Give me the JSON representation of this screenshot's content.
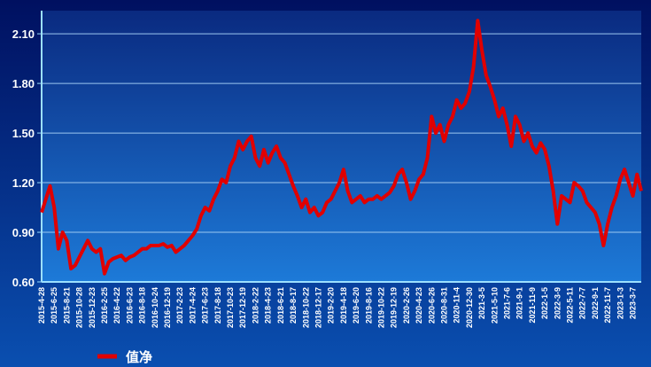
{
  "chart_data": {
    "type": "line",
    "categories": [
      "2015-4-28",
      null,
      null,
      "2015-6-25",
      null,
      null,
      "2015-8-21",
      null,
      null,
      "2015-10-28",
      null,
      null,
      "2015-12-23",
      null,
      null,
      "2016-2-25",
      null,
      null,
      "2016-4-22",
      null,
      null,
      "2016-6-23",
      null,
      null,
      "2016-8-18",
      null,
      null,
      "2016-10-24",
      null,
      null,
      "2016-12-19",
      null,
      null,
      "2017-2-23",
      null,
      null,
      "2017-4-24",
      null,
      null,
      "2017-6-23",
      null,
      null,
      "2017-8-18",
      null,
      null,
      "2017-10-23",
      null,
      null,
      "2017-12-19",
      null,
      null,
      "2018-2-22",
      null,
      null,
      "2018-4-23",
      null,
      null,
      "2018-6-21",
      null,
      null,
      "2018-8-17",
      null,
      null,
      "2018-10-22",
      null,
      null,
      "2018-12-17",
      null,
      null,
      "2019-2-20",
      null,
      null,
      "2019-4-18",
      null,
      null,
      "2019-6-20",
      null,
      null,
      "2019-8-16",
      null,
      null,
      "2019-10-22",
      null,
      null,
      "2019-12-19",
      null,
      null,
      "2020-2-26",
      null,
      null,
      "2020-4-23",
      null,
      null,
      "2020-6-26",
      null,
      null,
      "2020-8-31",
      null,
      null,
      "2020-11-4",
      null,
      null,
      "2020-12-30",
      null,
      null,
      "2021-3-5",
      null,
      null,
      "2021-5-10",
      null,
      null,
      "2021-7-6",
      null,
      null,
      "2021-9-1",
      null,
      null,
      "2021-11-9",
      null,
      null,
      "2022-1-5",
      null,
      null,
      "2022-3-9",
      null,
      null,
      "2022-5-11",
      null,
      null,
      "2022-7-7",
      null,
      null,
      "2022-9-1",
      null,
      null,
      "2022-11-7",
      null,
      null,
      "2023-1-3",
      null,
      null,
      "2023-3-7",
      null,
      null
    ],
    "series": [
      {
        "name": "值净",
        "color": "#e00000",
        "values": [
          1.02,
          1.1,
          1.18,
          1.05,
          0.8,
          0.9,
          0.85,
          0.68,
          0.7,
          0.75,
          0.8,
          0.85,
          0.8,
          0.78,
          0.8,
          0.65,
          0.72,
          0.74,
          0.75,
          0.76,
          0.73,
          0.75,
          0.76,
          0.78,
          0.8,
          0.8,
          0.82,
          0.82,
          0.82,
          0.83,
          0.81,
          0.82,
          0.78,
          0.8,
          0.82,
          0.85,
          0.88,
          0.92,
          1.0,
          1.05,
          1.03,
          1.1,
          1.15,
          1.22,
          1.2,
          1.3,
          1.35,
          1.45,
          1.4,
          1.45,
          1.48,
          1.35,
          1.3,
          1.4,
          1.32,
          1.38,
          1.42,
          1.35,
          1.32,
          1.25,
          1.18,
          1.12,
          1.05,
          1.1,
          1.02,
          1.05,
          1.0,
          1.02,
          1.08,
          1.1,
          1.15,
          1.2,
          1.28,
          1.15,
          1.08,
          1.1,
          1.12,
          1.08,
          1.1,
          1.1,
          1.12,
          1.1,
          1.12,
          1.14,
          1.18,
          1.25,
          1.28,
          1.2,
          1.1,
          1.15,
          1.22,
          1.25,
          1.35,
          1.6,
          1.5,
          1.55,
          1.45,
          1.55,
          1.6,
          1.7,
          1.65,
          1.68,
          1.75,
          1.9,
          2.18,
          2.0,
          1.85,
          1.78,
          1.7,
          1.6,
          1.65,
          1.55,
          1.42,
          1.6,
          1.55,
          1.45,
          1.5,
          1.42,
          1.38,
          1.44,
          1.4,
          1.3,
          1.15,
          0.95,
          1.12,
          1.1,
          1.08,
          1.2,
          1.18,
          1.15,
          1.08,
          1.05,
          1.02,
          0.95,
          0.82,
          0.95,
          1.05,
          1.12,
          1.22,
          1.28,
          1.2,
          1.12,
          1.25,
          1.15
        ]
      }
    ],
    "ylim": [
      0.6,
      2.24
    ],
    "yticks": [
      {
        "value": 0.6,
        "label": "0.60"
      },
      {
        "value": 0.9,
        "label": "0.90"
      },
      {
        "value": 1.2,
        "label": "1.20"
      },
      {
        "value": 1.5,
        "label": "1.50"
      },
      {
        "value": 1.8,
        "label": "1.80"
      },
      {
        "value": 2.1,
        "label": "2.10"
      }
    ],
    "grid": true
  }
}
